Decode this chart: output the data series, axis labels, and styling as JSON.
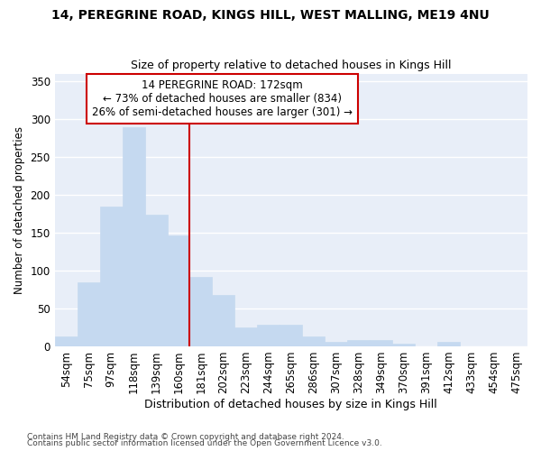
{
  "title1": "14, PEREGRINE ROAD, KINGS HILL, WEST MALLING, ME19 4NU",
  "title2": "Size of property relative to detached houses in Kings Hill",
  "xlabel": "Distribution of detached houses by size in Kings Hill",
  "ylabel": "Number of detached properties",
  "bar_values": [
    13,
    85,
    185,
    290,
    174,
    147,
    92,
    68,
    25,
    29,
    29,
    13,
    6,
    8,
    8,
    3,
    0,
    6,
    0,
    0,
    0
  ],
  "bar_labels": [
    "54sqm",
    "75sqm",
    "97sqm",
    "118sqm",
    "139sqm",
    "160sqm",
    "181sqm",
    "202sqm",
    "223sqm",
    "244sqm",
    "265sqm",
    "286sqm",
    "307sqm",
    "328sqm",
    "349sqm",
    "370sqm",
    "391sqm",
    "412sqm",
    "433sqm",
    "454sqm",
    "475sqm"
  ],
  "bar_color": "#c5d9f0",
  "bar_edge_color": "#c5d9f0",
  "bg_color": "#e8eef8",
  "grid_color": "#ffffff",
  "vline_x": 6.0,
  "vline_color": "#cc0000",
  "annotation_title": "14 PEREGRINE ROAD: 172sqm",
  "annotation_line1": "← 73% of detached houses are smaller (834)",
  "annotation_line2": "26% of semi-detached houses are larger (301) →",
  "annotation_box_color": "white",
  "annotation_box_edge": "#cc0000",
  "footnote1": "Contains HM Land Registry data © Crown copyright and database right 2024.",
  "footnote2": "Contains public sector information licensed under the Open Government Licence v3.0.",
  "ylim": [
    0,
    360
  ],
  "yticks": [
    0,
    50,
    100,
    150,
    200,
    250,
    300,
    350
  ]
}
